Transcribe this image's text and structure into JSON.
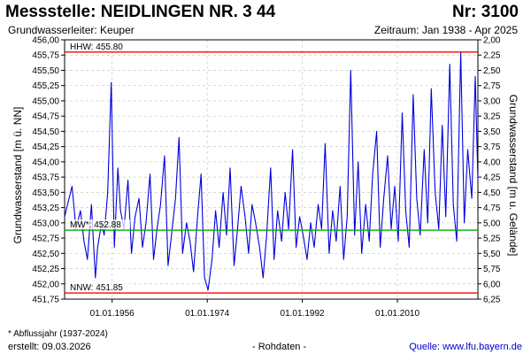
{
  "header": {
    "title": "Messstelle: NEIDLINGEN NR. 3 44",
    "number": "Nr: 3100",
    "subtitle": "Grundwasserleiter: Keuper",
    "period": "Zeitraum: Jan 1938 - Apr 2025"
  },
  "footer": {
    "footnote": "* Abflussjahr (1937-2024)",
    "created": "erstellt:  09.03.2026",
    "raw": "- Rohdaten -",
    "source": "Quelle: www.lfu.bayern.de"
  },
  "colors": {
    "series": "#0000dd",
    "hhw": "#ff0000",
    "nnw": "#ff0000",
    "mw": "#00aa00",
    "grid": "#c8c8c8"
  },
  "chart_data": {
    "type": "line",
    "title": "",
    "ylabel": "Grundwasserstand [m ü. NN]",
    "ylabel_right": "Grundwasserstand [m u. Gelände]",
    "ylim": [
      451.75,
      456.0
    ],
    "ylim_right": [
      6.25,
      2.0
    ],
    "xlim": [
      "1947-01-01",
      "2025-04-01"
    ],
    "y_ticks": [
      "456,00",
      "455,75",
      "455,50",
      "455,25",
      "455,00",
      "454,75",
      "454,50",
      "454,25",
      "454,00",
      "453,75",
      "453,50",
      "453,25",
      "453,00",
      "452,75",
      "452,50",
      "452,25",
      "452,00",
      "451,75"
    ],
    "y_ticks_right": [
      "2,00",
      "2,25",
      "2,50",
      "2,75",
      "3,00",
      "3,25",
      "3,50",
      "3,75",
      "4,00",
      "4,25",
      "4,50",
      "4,75",
      "5,00",
      "5,25",
      "5,50",
      "5,75",
      "6,00",
      "6,25"
    ],
    "x_ticks": [
      {
        "date": "1956-01-01",
        "label": "01.01.1956"
      },
      {
        "date": "1974-01-01",
        "label": "01.01.1974"
      },
      {
        "date": "1992-01-01",
        "label": "01.01.1992"
      },
      {
        "date": "2010-01-01",
        "label": "01.01.2010"
      }
    ],
    "reference_lines": [
      {
        "label": "HHW: 455.80",
        "value": 455.8,
        "key": "hhw"
      },
      {
        "label": "MW*: 452.88",
        "value": 452.88,
        "key": "mw"
      },
      {
        "label": "NNW: 451.85",
        "value": 451.85,
        "key": "nnw"
      }
    ],
    "grid": true,
    "series": [
      {
        "x": [
          "1947-01",
          "1948-06",
          "1949-03",
          "1950-01",
          "1950-09",
          "1951-05",
          "1952-02",
          "1952-11",
          "1953-04",
          "1954-01",
          "1954-07",
          "1955-03",
          "1955-11",
          "1956-06",
          "1957-02",
          "1957-08",
          "1958-04",
          "1959-01",
          "1959-09",
          "1960-05",
          "1961-02",
          "1961-10",
          "1962-06",
          "1963-03",
          "1963-11",
          "1964-07",
          "1965-03",
          "1965-12",
          "1966-08",
          "1967-04",
          "1968-01",
          "1968-09",
          "1969-05",
          "1970-02",
          "1970-10",
          "1971-06",
          "1972-03",
          "1972-11",
          "1973-07",
          "1974-03",
          "1974-12",
          "1975-08",
          "1976-04",
          "1977-01",
          "1977-09",
          "1978-05",
          "1979-02",
          "1979-10",
          "1980-06",
          "1981-03",
          "1981-11",
          "1982-07",
          "1983-03",
          "1983-12",
          "1984-08",
          "1985-04",
          "1986-01",
          "1986-09",
          "1987-05",
          "1988-02",
          "1988-10",
          "1989-06",
          "1990-03",
          "1990-11",
          "1991-07",
          "1992-03",
          "1992-12",
          "1993-08",
          "1994-04",
          "1995-01",
          "1995-09",
          "1996-05",
          "1997-02",
          "1997-10",
          "1998-06",
          "1999-03",
          "1999-11",
          "2000-07",
          "2001-03",
          "2001-12",
          "2002-08",
          "2003-04",
          "2004-01",
          "2004-09",
          "2005-05",
          "2006-02",
          "2006-10",
          "2007-06",
          "2008-03",
          "2008-11",
          "2009-07",
          "2010-03",
          "2010-12",
          "2011-08",
          "2012-04",
          "2013-01",
          "2013-09",
          "2014-05",
          "2015-02",
          "2015-10",
          "2016-06",
          "2017-03",
          "2017-11",
          "2018-07",
          "2019-03",
          "2019-12",
          "2020-08",
          "2021-04",
          "2022-01",
          "2022-09",
          "2023-05",
          "2024-02",
          "2024-10",
          "2025-04"
        ],
        "y": [
          453.1,
          453.6,
          452.9,
          453.2,
          452.7,
          452.4,
          453.3,
          452.1,
          452.6,
          453.0,
          452.8,
          453.5,
          455.3,
          452.6,
          453.9,
          453.2,
          452.9,
          453.7,
          452.5,
          453.1,
          453.4,
          452.6,
          453.0,
          453.8,
          452.4,
          452.9,
          453.3,
          454.1,
          452.3,
          452.8,
          453.4,
          454.4,
          452.5,
          453.0,
          452.7,
          452.2,
          453.1,
          453.8,
          452.1,
          451.9,
          452.4,
          453.2,
          452.6,
          453.5,
          452.8,
          453.9,
          452.3,
          452.9,
          453.6,
          453.1,
          452.5,
          453.3,
          453.0,
          452.6,
          452.1,
          452.8,
          453.9,
          452.4,
          453.2,
          452.7,
          453.5,
          452.9,
          454.2,
          452.6,
          453.1,
          452.8,
          452.4,
          453.0,
          452.6,
          453.3,
          452.9,
          454.3,
          452.5,
          453.2,
          452.7,
          453.6,
          452.4,
          453.1,
          455.5,
          452.8,
          454.0,
          452.5,
          453.3,
          452.7,
          453.8,
          454.5,
          452.6,
          453.4,
          454.1,
          452.9,
          453.6,
          452.7,
          454.8,
          453.2,
          452.6,
          455.1,
          453.4,
          452.8,
          454.2,
          453.0,
          455.2,
          453.5,
          452.9,
          454.6,
          453.1,
          455.6,
          453.3,
          452.7,
          455.8,
          453.0,
          454.2,
          453.4,
          455.4,
          453.7
        ]
      }
    ]
  }
}
